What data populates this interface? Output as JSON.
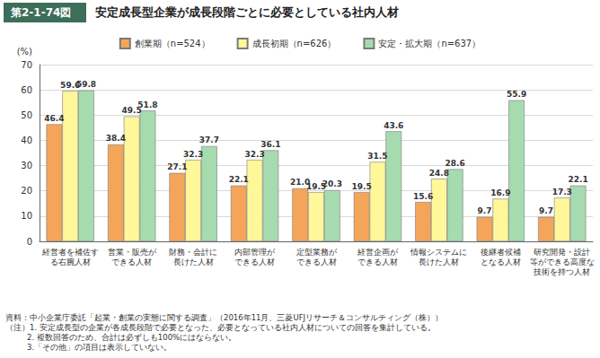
{
  "chart_data": {
    "type": "bar",
    "figure_number": "第2-1-74図",
    "title": "安定成長型企業が成長段階ごとに必要としている社内人材",
    "y_label": "(%)",
    "categories": [
      "経営者を補佐す\nる右腕人材",
      "営業・販売が\nできる人材",
      "財務・会計に\n長けた人材",
      "内部管理が\nできる人材",
      "定型業務が\nできる人材",
      "経営企画が\nできる人材",
      "情報システムに\n長けた人材",
      "後継者候補\nとなる人材",
      "研究開発・設計\n等ができる高度な\n技術を持つ人材"
    ],
    "series": [
      {
        "name": "創業期（n=524）",
        "color": "#f5a55a",
        "values": [
          46.4,
          38.4,
          27.1,
          22.1,
          21.0,
          19.5,
          15.6,
          9.7,
          9.7
        ],
        "value_labels": [
          "46.4",
          "38.4",
          "27.1",
          "22.1",
          "21.0",
          "19.5",
          "15.6",
          "9.7",
          "9.7"
        ]
      },
      {
        "name": "成長初期（n=626）",
        "color": "#fff799",
        "values": [
          59.6,
          49.5,
          32.3,
          32.3,
          19.5,
          31.5,
          24.8,
          16.9,
          17.3
        ],
        "value_labels": [
          "59.6",
          "49.5",
          "32.3",
          "32.3",
          "19.5",
          "31.5",
          "24.8",
          "16.9",
          "17.3"
        ]
      },
      {
        "name": "安定・拡大期（n=637）",
        "color": "#a6dbb0",
        "values": [
          59.8,
          51.8,
          37.7,
          36.1,
          20.3,
          43.6,
          28.6,
          55.9,
          22.1
        ],
        "value_labels": [
          "59.8",
          "51.8",
          "37.7",
          "36.1",
          "20.3",
          "43.6",
          "28.6",
          "55.9",
          "22.1"
        ]
      }
    ],
    "ylim": [
      0,
      70
    ],
    "yticks": [
      0,
      10,
      20,
      30,
      40,
      50,
      60,
      70
    ],
    "grid": true,
    "legend": "top",
    "data_labels": true,
    "annotations": [
      "資料：中小企業庁委託「起業・創業の実態に関する調査」（2016年11月、三菱UFJリサーチ＆コンサルティング（株））",
      "（注）1. 安定成長型の企業が各成長段階で必要となった、必要となっている社内人材についての回答を集計している。",
      "2. 複数回答のため、合計は必ずしも100%にはならない。",
      "3.「その他」の項目は表示していない。"
    ]
  }
}
